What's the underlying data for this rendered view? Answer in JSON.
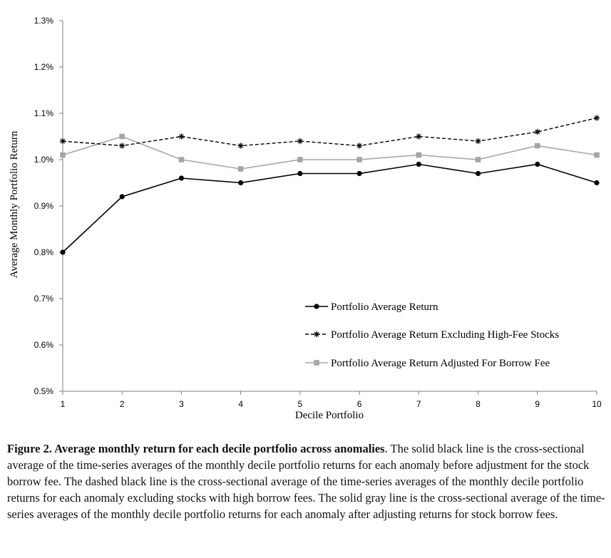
{
  "chart_data": {
    "type": "line",
    "xlabel": "Decile Portfolio",
    "ylabel": "Average Monthly Portfolio Return",
    "x": [
      1,
      2,
      3,
      4,
      5,
      6,
      7,
      8,
      9,
      10
    ],
    "ylim": [
      0.5,
      1.3
    ],
    "yticks": [
      "0.5%",
      "0.6%",
      "0.7%",
      "0.8%",
      "0.9%",
      "1.0%",
      "1.1%",
      "1.2%",
      "1.3%"
    ],
    "grid": false,
    "legend_position": "bottom-right",
    "series": [
      {
        "name": "Portfolio Average Return",
        "color": "#000000",
        "style": "solid",
        "marker": "circle",
        "values": [
          0.8,
          0.92,
          0.96,
          0.95,
          0.97,
          0.97,
          0.99,
          0.97,
          0.99,
          0.95
        ]
      },
      {
        "name": "Portfolio Average Return Excluding High-Fee Stocks",
        "color": "#000000",
        "style": "dashed",
        "marker": "star",
        "values": [
          1.04,
          1.03,
          1.05,
          1.03,
          1.04,
          1.03,
          1.05,
          1.04,
          1.06,
          1.09
        ]
      },
      {
        "name": "Portfolio Average Return Adjusted For Borrow Fee",
        "color": "#a6a6a6",
        "style": "solid",
        "marker": "square",
        "values": [
          1.01,
          1.05,
          1.0,
          0.98,
          1.0,
          1.0,
          1.01,
          1.0,
          1.03,
          1.01
        ]
      }
    ]
  },
  "caption": {
    "label": "Figure 2.  Average monthly return for each decile portfolio across anomalies",
    "text": ". The solid black line is the cross-sectional average of the time-series averages of the monthly decile portfolio returns for each anomaly before adjustment for the stock borrow fee. The dashed black line is the cross-sectional average of the time-series averages of the monthly decile portfolio returns for each anomaly excluding stocks with high borrow fees. The solid gray line is the cross-sectional average of the time-series averages of the monthly decile portfolio returns for each anomaly after adjusting returns for stock borrow fees."
  }
}
